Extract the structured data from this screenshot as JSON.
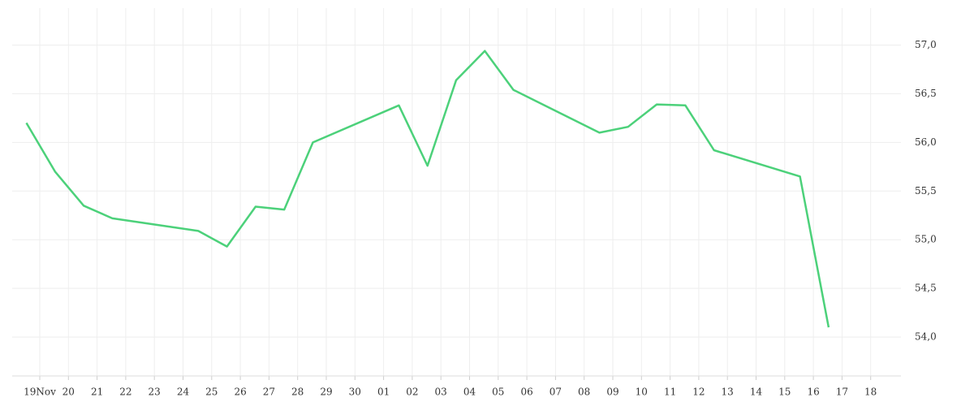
{
  "chart_data": {
    "type": "line",
    "categories": [
      "19Nov",
      "20",
      "21",
      "22",
      "23",
      "24",
      "25",
      "26",
      "27",
      "28",
      "29",
      "30",
      "01",
      "02",
      "03",
      "04",
      "05",
      "06",
      "07",
      "08",
      "09",
      "10",
      "11",
      "12",
      "13",
      "14",
      "15",
      "16",
      "17",
      "18"
    ],
    "series": [
      {
        "color": "#4cd17a",
        "x": [
          "19Nov",
          "20",
          "21",
          "22",
          "25",
          "26",
          "27",
          "28",
          "29",
          "02",
          "03",
          "04",
          "05",
          "06",
          "09",
          "10",
          "11",
          "12",
          "13",
          "16",
          "17"
        ],
        "values": [
          56.2,
          55.7,
          55.35,
          55.22,
          55.09,
          54.93,
          55.34,
          55.31,
          56.0,
          56.38,
          55.76,
          56.64,
          56.94,
          56.54,
          56.1,
          56.16,
          56.39,
          56.38,
          55.92,
          55.65,
          54.1
        ]
      }
    ],
    "ylim": [
      53.6,
      57.38
    ],
    "yticks": [
      {
        "value": 54,
        "label": "54,0"
      },
      {
        "value": 54.5,
        "label": "54,5"
      },
      {
        "value": 55,
        "label": "55,0"
      },
      {
        "value": 55.5,
        "label": "55,5"
      },
      {
        "value": 56,
        "label": "56,0"
      },
      {
        "value": 56.5,
        "label": "56,5"
      },
      {
        "value": 57,
        "label": "57,0"
      }
    ],
    "grid": true
  }
}
